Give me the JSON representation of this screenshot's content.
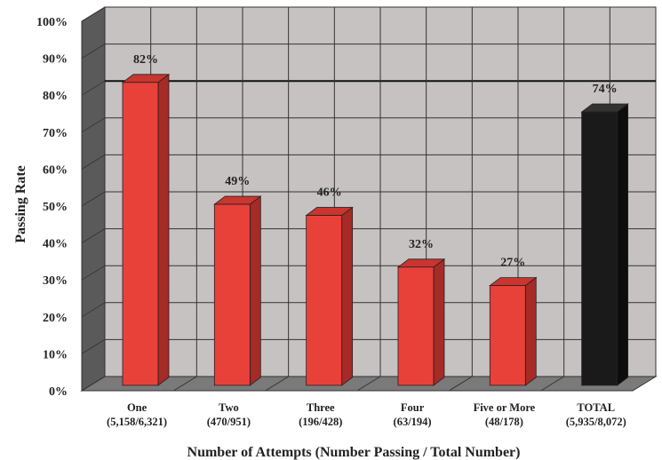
{
  "chart_data": {
    "type": "bar",
    "title": "",
    "xlabel": "Number of Attempts (Number Passing / Total Number)",
    "ylabel": "Passing Rate",
    "ylim": [
      0,
      100
    ],
    "y_ticks": [
      "0%",
      "10%",
      "20%",
      "30%",
      "40%",
      "50%",
      "60%",
      "70%",
      "80%",
      "90%",
      "100%"
    ],
    "categories": [
      {
        "name": "One",
        "detail": "(5,158/6,321)"
      },
      {
        "name": "Two",
        "detail": "(470/951)"
      },
      {
        "name": "Three",
        "detail": "(196/428)"
      },
      {
        "name": "Four",
        "detail": "(63/194)"
      },
      {
        "name": "Five or More",
        "detail": "(48/178)"
      },
      {
        "name": "TOTAL",
        "detail": "(5,935/8,072)"
      }
    ],
    "values": [
      82,
      49,
      46,
      32,
      27,
      74
    ],
    "data_labels": [
      "82%",
      "49%",
      "46%",
      "32%",
      "27%",
      "74%"
    ],
    "grid": true,
    "colors": {
      "bar": "#e8413a",
      "bar_total": "#1a1a1a",
      "wall": "#c6c2c2",
      "floor": "#7a7a7a",
      "side_wall": "#5a5a5a"
    }
  }
}
